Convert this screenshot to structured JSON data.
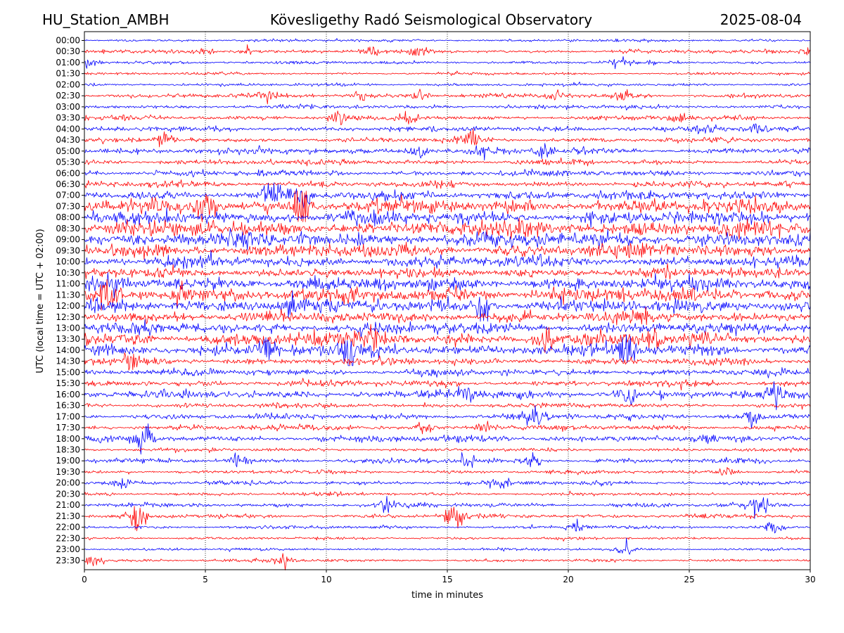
{
  "chart_data": {
    "type": "line",
    "station": "HU_Station_AMBH",
    "title": "Kövesligethy Radó Seismological Observatory",
    "date": "2025-08-04",
    "xlabel": "time in minutes",
    "ylabel": "UTC (local time = UTC + 02:00)",
    "xlim": [
      0,
      30
    ],
    "x_ticks": [
      "0",
      "5",
      "10",
      "15",
      "20",
      "25",
      "30"
    ],
    "x_grid": "dotted vertical lines at 5-minute intervals",
    "y_ticks": [
      "00:00",
      "00:30",
      "01:00",
      "01:30",
      "02:00",
      "02:30",
      "03:00",
      "03:30",
      "04:00",
      "04:30",
      "05:00",
      "05:30",
      "06:00",
      "06:30",
      "07:00",
      "07:30",
      "08:00",
      "08:30",
      "09:00",
      "09:30",
      "10:00",
      "10:30",
      "11:00",
      "11:30",
      "12:00",
      "12:30",
      "13:00",
      "13:30",
      "14:00",
      "14:30",
      "15:00",
      "15:30",
      "16:00",
      "16:30",
      "17:00",
      "17:30",
      "18:00",
      "18:30",
      "19:00",
      "19:30",
      "20:00",
      "20:30",
      "21:00",
      "21:30",
      "22:00",
      "22:30",
      "23:00",
      "23:30"
    ],
    "trace_colors": [
      "#0000ff",
      "#ff0000"
    ],
    "trace_amplitude_level": [
      0.08,
      0.15,
      0.12,
      0.07,
      0.1,
      0.2,
      0.18,
      0.22,
      0.25,
      0.22,
      0.32,
      0.25,
      0.3,
      0.32,
      0.5,
      0.8,
      0.8,
      0.95,
      0.9,
      0.8,
      0.65,
      0.55,
      0.8,
      0.85,
      0.8,
      0.65,
      0.65,
      0.8,
      0.75,
      0.35,
      0.35,
      0.3,
      0.45,
      0.22,
      0.3,
      0.25,
      0.35,
      0.12,
      0.2,
      0.15,
      0.18,
      0.12,
      0.18,
      0.18,
      0.12,
      0.08,
      0.08,
      0.1
    ],
    "events": [
      {
        "trace": "00:30",
        "minutes": [
          4.9,
          6.7,
          11.8,
          13.9,
          29.9
        ],
        "strength": 0.6
      },
      {
        "trace": "01:00",
        "minutes": [
          0.3,
          22.1
        ],
        "strength": 0.8
      },
      {
        "trace": "02:30",
        "minutes": [
          7.5,
          11.5,
          13.8,
          19.5,
          22.3
        ],
        "strength": 0.6
      },
      {
        "trace": "03:30",
        "minutes": [
          10.5,
          13.4,
          24.5
        ],
        "strength": 0.7
      },
      {
        "trace": "04:00",
        "minutes": [
          25.7,
          27.7
        ],
        "strength": 0.8
      },
      {
        "trace": "04:30",
        "minutes": [
          3.3,
          16.0
        ],
        "strength": 1.1
      },
      {
        "trace": "05:00",
        "minutes": [
          13.8,
          16.4,
          19.0
        ],
        "strength": 1.0
      },
      {
        "trace": "07:00",
        "minutes": [
          7.7,
          9.0
        ],
        "strength": 1.6
      },
      {
        "trace": "07:30",
        "minutes": [
          9.0,
          5.0
        ],
        "strength": 2.5
      },
      {
        "trace": "11:00",
        "minutes": [
          1.2
        ],
        "strength": 1.4
      },
      {
        "trace": "11:30",
        "minutes": [
          1.0,
          4.0
        ],
        "strength": 1.5
      },
      {
        "trace": "12:00",
        "minutes": [
          16.5,
          8.5
        ],
        "strength": 1.4
      },
      {
        "trace": "13:30",
        "minutes": [
          12.0,
          19.0,
          23.5
        ],
        "strength": 1.5
      },
      {
        "trace": "14:00",
        "minutes": [
          11.0,
          7.5,
          22.4
        ],
        "strength": 1.8
      },
      {
        "trace": "14:30",
        "minutes": [
          2.0
        ],
        "strength": 1.2
      },
      {
        "trace": "16:00",
        "minutes": [
          15.8,
          22.4,
          28.5
        ],
        "strength": 1.2
      },
      {
        "trace": "17:00",
        "minutes": [
          18.5,
          27.6
        ],
        "strength": 0.9
      },
      {
        "trace": "17:30",
        "minutes": [
          14.0,
          16.5
        ],
        "strength": 0.8
      },
      {
        "trace": "18:00",
        "minutes": [
          2.4
        ],
        "strength": 2.0
      },
      {
        "trace": "19:00",
        "minutes": [
          6.4,
          15.8,
          18.5
        ],
        "strength": 0.9
      },
      {
        "trace": "19:30",
        "minutes": [
          26.5
        ],
        "strength": 0.8
      },
      {
        "trace": "20:00",
        "minutes": [
          1.6,
          17.2
        ],
        "strength": 0.9
      },
      {
        "trace": "21:00",
        "minutes": [
          27.9,
          12.5
        ],
        "strength": 1.6
      },
      {
        "trace": "21:30",
        "minutes": [
          2.2,
          15.3
        ],
        "strength": 2.0
      },
      {
        "trace": "22:00",
        "minutes": [
          28.5,
          20.3
        ],
        "strength": 0.8
      },
      {
        "trace": "23:00",
        "minutes": [
          22.3
        ],
        "strength": 0.7
      },
      {
        "trace": "23:30",
        "minutes": [
          0.4,
          8.2
        ],
        "strength": 1.0
      }
    ]
  }
}
